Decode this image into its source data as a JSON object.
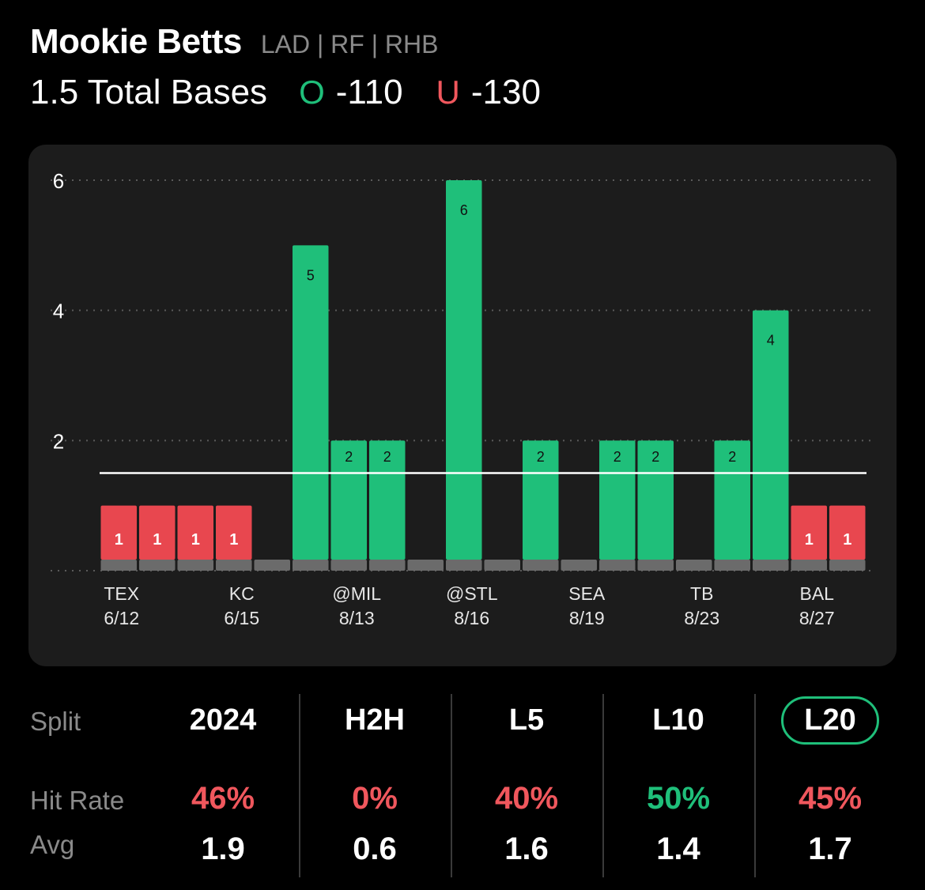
{
  "header": {
    "player_name": "Mookie Betts",
    "player_meta": "LAD | RF | RHB",
    "prop_line": "1.5 Total Bases",
    "over_letter": "O",
    "over_odds": "-110",
    "under_letter": "U",
    "under_odds": "-130"
  },
  "colors": {
    "over": "#1fbf7a",
    "under": "#e8474f",
    "neutral": "#6b6b6b",
    "card": "#1c1c1c"
  },
  "chart_data": {
    "type": "bar",
    "line_value": 1.5,
    "ylim": [
      0,
      6.6
    ],
    "yticks": [
      2,
      4,
      6
    ],
    "grid": "dotted",
    "values": [
      1,
      1,
      1,
      1,
      0,
      5,
      2,
      2,
      0,
      6,
      0,
      2,
      0,
      2,
      2,
      0,
      2,
      4,
      1,
      1
    ],
    "x_labels": [
      {
        "index": 0,
        "team": "TEX",
        "date": "6/12"
      },
      {
        "index": 3,
        "team": "KC",
        "date": "6/15"
      },
      {
        "index": 6,
        "team": "@MIL",
        "date": "8/13"
      },
      {
        "index": 9,
        "team": "@STL",
        "date": "8/16"
      },
      {
        "index": 12,
        "team": "SEA",
        "date": "8/19"
      },
      {
        "index": 15,
        "team": "TB",
        "date": "8/23"
      },
      {
        "index": 18,
        "team": "BAL",
        "date": "8/27"
      }
    ]
  },
  "splits": {
    "split_label": "Split",
    "hit_rate_label": "Hit Rate",
    "avg_label": "Avg",
    "columns": [
      {
        "name": "2024",
        "hit_rate": "46%",
        "avg": "1.9",
        "rate_color": "#f0575d",
        "active": false
      },
      {
        "name": "H2H",
        "hit_rate": "0%",
        "avg": "0.6",
        "rate_color": "#f0575d",
        "active": false
      },
      {
        "name": "L5",
        "hit_rate": "40%",
        "avg": "1.6",
        "rate_color": "#f0575d",
        "active": false
      },
      {
        "name": "L10",
        "hit_rate": "50%",
        "avg": "1.4",
        "rate_color": "#1fbf7a",
        "active": false
      },
      {
        "name": "L20",
        "hit_rate": "45%",
        "avg": "1.7",
        "rate_color": "#f0575d",
        "active": true
      }
    ]
  }
}
